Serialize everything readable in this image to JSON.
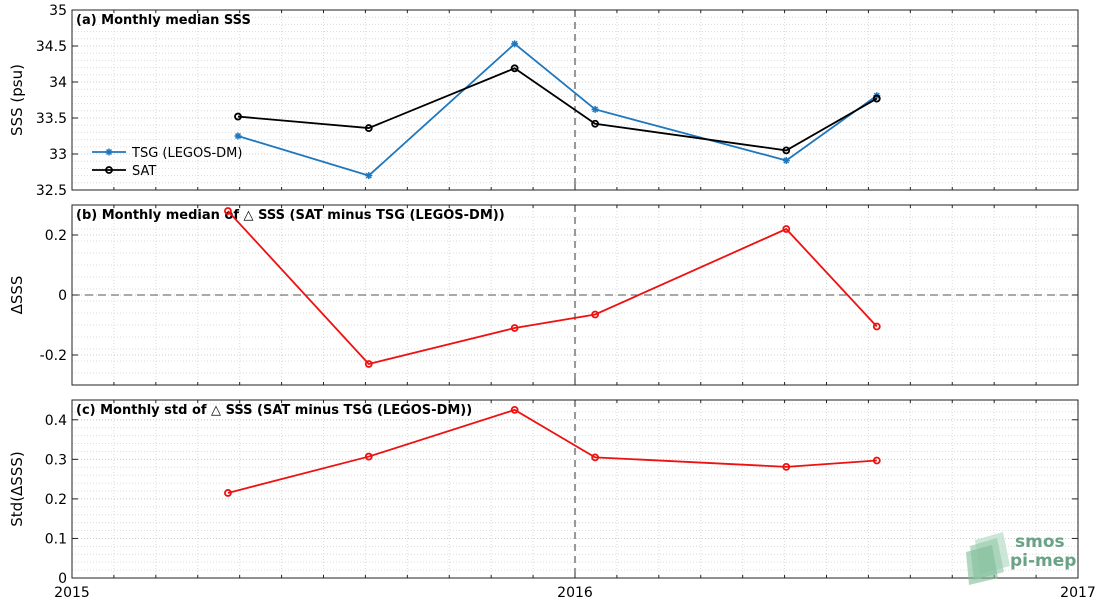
{
  "logo": {
    "line1": "smos",
    "line2": "pi-mep"
  },
  "x_axis": {
    "range": [
      2015.0,
      2017.0
    ],
    "ticks": [
      2015,
      2016,
      2017
    ],
    "tick_labels": [
      "2015",
      "2016",
      "2017"
    ],
    "divider": 2016.0
  },
  "chart_data": [
    {
      "type": "line",
      "title": "(a) Monthly median SSS",
      "ylabel": "SSS (psu)",
      "ylim": [
        32.5,
        35
      ],
      "yticks": [
        32.5,
        33,
        33.5,
        34,
        34.5,
        35
      ],
      "ytick_labels": [
        "32.5",
        "33",
        "33.5",
        "34",
        "34.5",
        "35"
      ],
      "grid": true,
      "legend_position": "left",
      "series": [
        {
          "name": "TSG (LEGOS-DM)",
          "color": "#1f77bd",
          "marker": "asterisk",
          "x": [
            2015.33,
            2015.59,
            2015.88,
            2016.04,
            2016.42,
            2016.6
          ],
          "values": [
            33.25,
            32.7,
            34.53,
            33.62,
            32.91,
            33.81
          ]
        },
        {
          "name": "SAT",
          "color": "#000000",
          "marker": "circle",
          "x": [
            2015.33,
            2015.59,
            2015.88,
            2016.04,
            2016.42,
            2016.6
          ],
          "values": [
            33.52,
            33.36,
            34.19,
            33.42,
            33.05,
            33.77
          ]
        }
      ]
    },
    {
      "type": "line",
      "title": "(b) Monthly median of △ SSS (SAT minus TSG (LEGOS-DM))",
      "ylabel": "ΔSSS",
      "ylim": [
        -0.3,
        0.3
      ],
      "yticks": [
        -0.2,
        0,
        0.2
      ],
      "ytick_labels": [
        "-0.2",
        "0",
        "0.2"
      ],
      "zero_line": true,
      "grid": true,
      "series": [
        {
          "color": "#ee1111",
          "marker": "circle",
          "x": [
            2015.31,
            2015.59,
            2015.88,
            2016.04,
            2016.42,
            2016.6
          ],
          "values": [
            0.28,
            -0.23,
            -0.11,
            -0.065,
            0.22,
            -0.105
          ]
        }
      ]
    },
    {
      "type": "line",
      "title": "(c) Monthly std of △ SSS (SAT minus TSG (LEGOS-DM))",
      "ylabel": "Std(ΔSSS)",
      "ylim": [
        0,
        0.45
      ],
      "yticks": [
        0,
        0.1,
        0.2,
        0.3,
        0.4
      ],
      "ytick_labels": [
        "0",
        "0.1",
        "0.2",
        "0.3",
        "0.4"
      ],
      "grid": true,
      "series": [
        {
          "color": "#ee1111",
          "marker": "circle",
          "x": [
            2015.31,
            2015.59,
            2015.88,
            2016.04,
            2016.42,
            2016.6
          ],
          "values": [
            0.215,
            0.307,
            0.425,
            0.305,
            0.281,
            0.297
          ]
        }
      ]
    }
  ]
}
